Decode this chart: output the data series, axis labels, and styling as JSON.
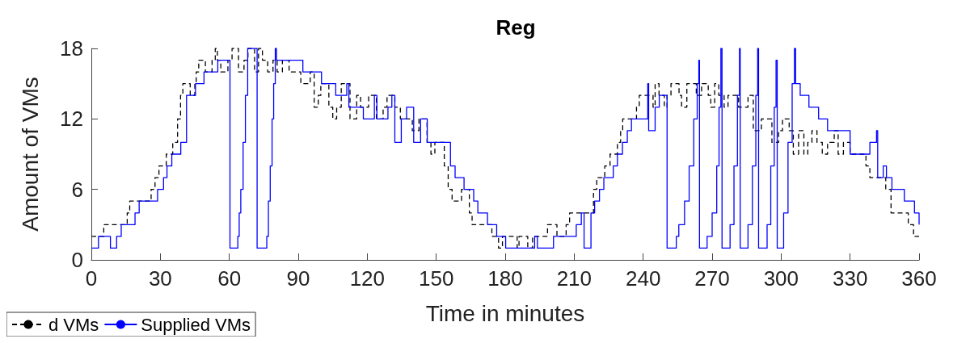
{
  "chart_data": {
    "type": "step",
    "title": "Reg",
    "xlabel": "Time in minutes",
    "ylabel": "Amount of VMs",
    "xlim": [
      0,
      360
    ],
    "xticks": [
      0,
      30,
      60,
      90,
      120,
      150,
      180,
      210,
      240,
      270,
      300,
      330,
      360
    ],
    "ylim": [
      0,
      18
    ],
    "yticks": [
      0,
      6,
      12,
      18
    ],
    "grid": false,
    "legend": "bottom left",
    "marker": "none",
    "series": [
      {
        "name": "d VMs",
        "color": "#000000",
        "line_style": "dashed",
        "x": [
          0,
          5.4,
          15.6,
          16.7,
          26,
          27.7,
          29.4,
          32.6,
          35.4,
          37.5,
          38.8,
          39.8,
          43,
          45,
          45.6,
          46.7,
          49.6,
          52.5,
          53.9,
          54.8,
          56.3,
          59.4,
          61.2,
          64,
          66.4,
          68.1,
          71,
          72.7,
          74.4,
          76.7,
          79,
          80.8,
          83.1,
          86,
          91.1,
          95.2,
          96.9,
          98.7,
          99.8,
          103.3,
          105,
          106.7,
          108.7,
          112.5,
          115.4,
          117.1,
          120.6,
          124,
          126.9,
          128.6,
          132,
          134.4,
          139.6,
          142.5,
          146,
          147.7,
          149.4,
          153.5,
          155.2,
          156.9,
          161,
          164.4,
          165.6,
          174.2,
          177.1,
          178.8,
          185.2,
          186,
          189.8,
          191.9,
          198.4,
          202.5,
          206.5,
          208,
          218.4,
          219.8,
          223.3,
          225.6,
          228.8,
          230.2,
          231.1,
          237.1,
          238.3,
          244.3,
          245.2,
          246.9,
          249.2,
          250.4,
          252.1,
          255.6,
          256.7,
          259,
          263.1,
          265.4,
          268.3,
          269.4,
          271.1,
          272.9,
          275.2,
          276.9,
          281.5,
          285.6,
          287.9,
          291.4,
          296,
          298.9,
          300.6,
          303.5,
          305.3,
          307.6,
          309.9,
          311.6,
          313.4,
          315.6,
          317.9,
          320.2,
          323.1,
          324.8,
          327.1,
          330,
          336.9,
          338.6,
          345.5,
          347.8,
          355.3,
          357.6,
          360
        ],
        "values": [
          2,
          3,
          4,
          5,
          6,
          7,
          8,
          9,
          10,
          12,
          14,
          15,
          14,
          15,
          16,
          17,
          16,
          17,
          18,
          17,
          16,
          17,
          18,
          16,
          17,
          18,
          16,
          18,
          17,
          16,
          17,
          16,
          17,
          16,
          15,
          16,
          13,
          14,
          15,
          13,
          12,
          13,
          15,
          12,
          14,
          13,
          14,
          12,
          13,
          14,
          13,
          12,
          11,
          12,
          10,
          9,
          10,
          8,
          6,
          5,
          6,
          4,
          3,
          2,
          1,
          2,
          1,
          2,
          1,
          2,
          3,
          2,
          3,
          4,
          6,
          7,
          8,
          9,
          10,
          11,
          12,
          13,
          14,
          13,
          15,
          14,
          13,
          14,
          15,
          14,
          13,
          15,
          14,
          15,
          14,
          13,
          15,
          14,
          13,
          14,
          13,
          14,
          11,
          12,
          10,
          11,
          12,
          11,
          9,
          11,
          9,
          10,
          11,
          10,
          9,
          10,
          11,
          9,
          10,
          9,
          8,
          7,
          6,
          4,
          3,
          2,
          2
        ]
      },
      {
        "name": "Supplied VMs",
        "color": "#0000ff",
        "line_style": "solid",
        "x": [
          0,
          3.1,
          8.3,
          11,
          13,
          19,
          20.8,
          28.8,
          31.4,
          32.9,
          35,
          38.9,
          41.4,
          45.3,
          49,
          55,
          60.3,
          63.7,
          64.3,
          65,
          66,
          67,
          68,
          72.1,
          76.3,
          77,
          77.8,
          78.6,
          79.3,
          80,
          80.5,
          92,
          100.1,
          106.3,
          111.1,
          112,
          118.3,
          123.1,
          124.2,
          129,
          130.7,
          132,
          134.8,
          137.1,
          140.2,
          143.2,
          146.1,
          156.2,
          158.2,
          162.1,
          166.3,
          168.1,
          172.3,
          176.3,
          180.2,
          192.8,
          194,
          201,
          210.9,
          213.1,
          214.3,
          217.3,
          218.9,
          221,
          222.9,
          227,
          228.8,
          231,
          233.1,
          234.9,
          241.4,
          242,
          242.4,
          245.2,
          247,
          250.4,
          254.4,
          255.5,
          258,
          260,
          262,
          263.5,
          264.2,
          264.5,
          267.8,
          270,
          272,
          273,
          273.8,
          274.3,
          277.8,
          279.5,
          281,
          281.9,
          282.2,
          285.6,
          287.5,
          289,
          289.8,
          290.2,
          293.9,
          295.5,
          297,
          297.8,
          298.3,
          301.1,
          303,
          304.8,
          305.8,
          306.3,
          308.3,
          312.1,
          316.3,
          320.2,
          330,
          338.6,
          341.5,
          342,
          344.4,
          345.8,
          348.2,
          353.6,
          358,
          360
        ],
        "values": [
          1,
          2,
          1,
          2,
          3,
          4,
          5,
          6,
          7,
          8,
          9,
          10,
          14,
          15,
          16,
          17,
          1,
          2,
          4,
          6,
          10,
          14,
          18,
          1,
          2,
          5,
          8,
          12,
          15,
          18,
          17,
          16,
          15,
          14,
          15,
          13,
          12,
          14,
          12,
          13,
          14,
          10,
          12,
          13,
          10,
          12,
          10,
          8,
          7,
          6,
          5,
          4,
          3,
          2,
          1,
          2,
          1,
          2,
          3,
          4,
          1,
          4,
          5,
          6,
          7,
          8,
          9,
          10,
          11,
          12,
          12,
          15,
          11,
          13,
          14,
          1,
          2,
          3,
          5,
          8,
          12,
          15,
          17,
          1,
          2,
          4,
          8,
          13,
          18,
          1,
          3,
          8,
          14,
          18,
          1,
          3,
          8,
          14,
          18,
          1,
          3,
          8,
          13,
          17,
          1,
          4,
          10,
          15,
          18,
          15,
          14,
          13,
          12,
          11,
          9,
          10,
          11,
          7,
          8,
          7,
          6,
          5,
          4,
          3
        ]
      }
    ]
  }
}
